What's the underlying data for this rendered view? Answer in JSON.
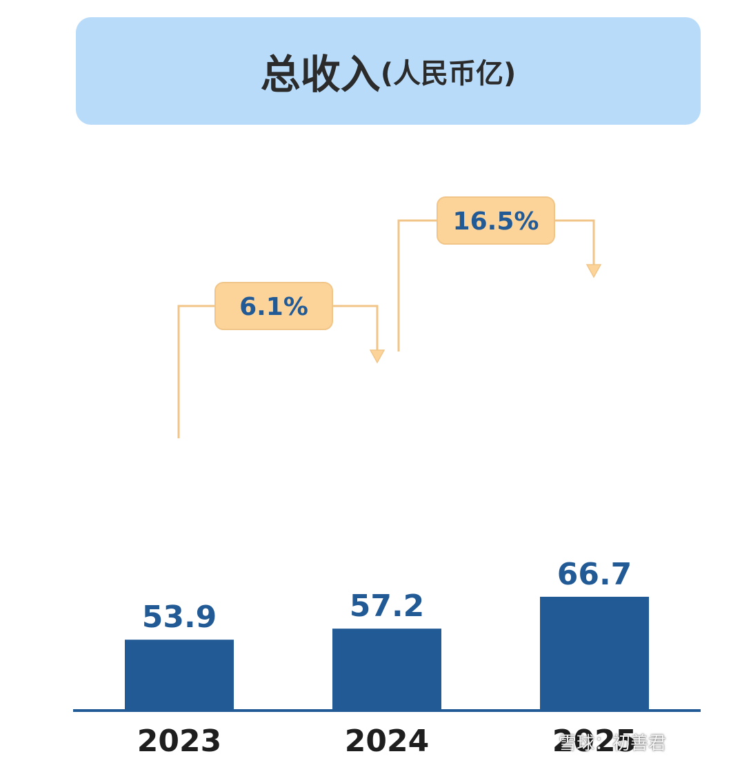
{
  "title": {
    "main": "总收入",
    "unit": "(人民币亿)"
  },
  "chart_data": {
    "type": "bar",
    "categories": [
      "2023",
      "2024",
      "2025"
    ],
    "values": [
      53.9,
      57.2,
      66.7
    ],
    "value_labels": [
      "53.9",
      "57.2",
      "66.7"
    ],
    "growth_labels": [
      "6.1%",
      "16.5%"
    ],
    "title": "总收入(人民币亿)",
    "xlabel": "",
    "ylabel": "",
    "bar_color": "#225a96",
    "growth_box_color": "#fcd49a",
    "connector_color": "#f1c587"
  },
  "watermark": "雪球：初善君"
}
